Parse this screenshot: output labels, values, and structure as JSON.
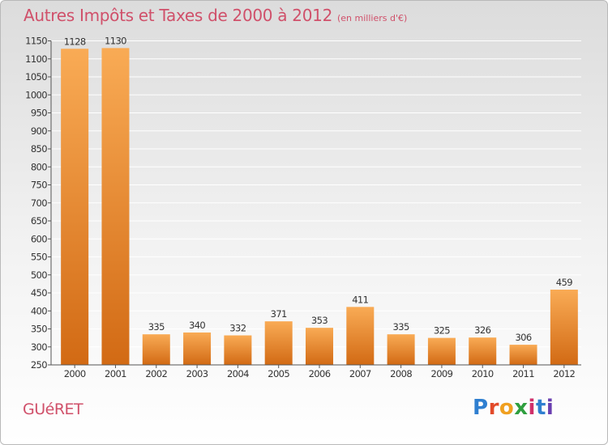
{
  "header": {
    "title": "Autres Impôts et Taxes de 2000 à 2012",
    "unit": "(en milliers d'€)"
  },
  "footer": {
    "place": "GUéRET",
    "brand": "Proxiti",
    "brand_letters": [
      "P",
      "r",
      "o",
      "x",
      "i",
      "t",
      "i"
    ],
    "brand_colors": [
      "#2f7fd0",
      "#e24a2a",
      "#f0a020",
      "#2f9f3f",
      "#d0306a",
      "#2f7fd0",
      "#6a3fb0"
    ]
  },
  "colors": {
    "text_accent": "#d0506a",
    "bar_top": "#f9ab55",
    "bar_bottom": "#d26a14",
    "grid": "#ffffff",
    "axis": "#555555"
  },
  "chart_data": {
    "type": "bar",
    "title": "Autres Impôts et Taxes de 2000 à 2012",
    "categories": [
      "2000",
      "2001",
      "2002",
      "2003",
      "2004",
      "2005",
      "2006",
      "2007",
      "2008",
      "2009",
      "2010",
      "2011",
      "2012"
    ],
    "values": [
      1128,
      1130,
      335,
      340,
      332,
      371,
      353,
      411,
      335,
      325,
      326,
      306,
      459
    ],
    "ylim": [
      250,
      1150
    ],
    "yticks": [
      250,
      300,
      350,
      400,
      450,
      500,
      550,
      600,
      650,
      700,
      750,
      800,
      850,
      900,
      950,
      1000,
      1050,
      1100,
      1150
    ],
    "grid": true,
    "data_labels": true
  }
}
